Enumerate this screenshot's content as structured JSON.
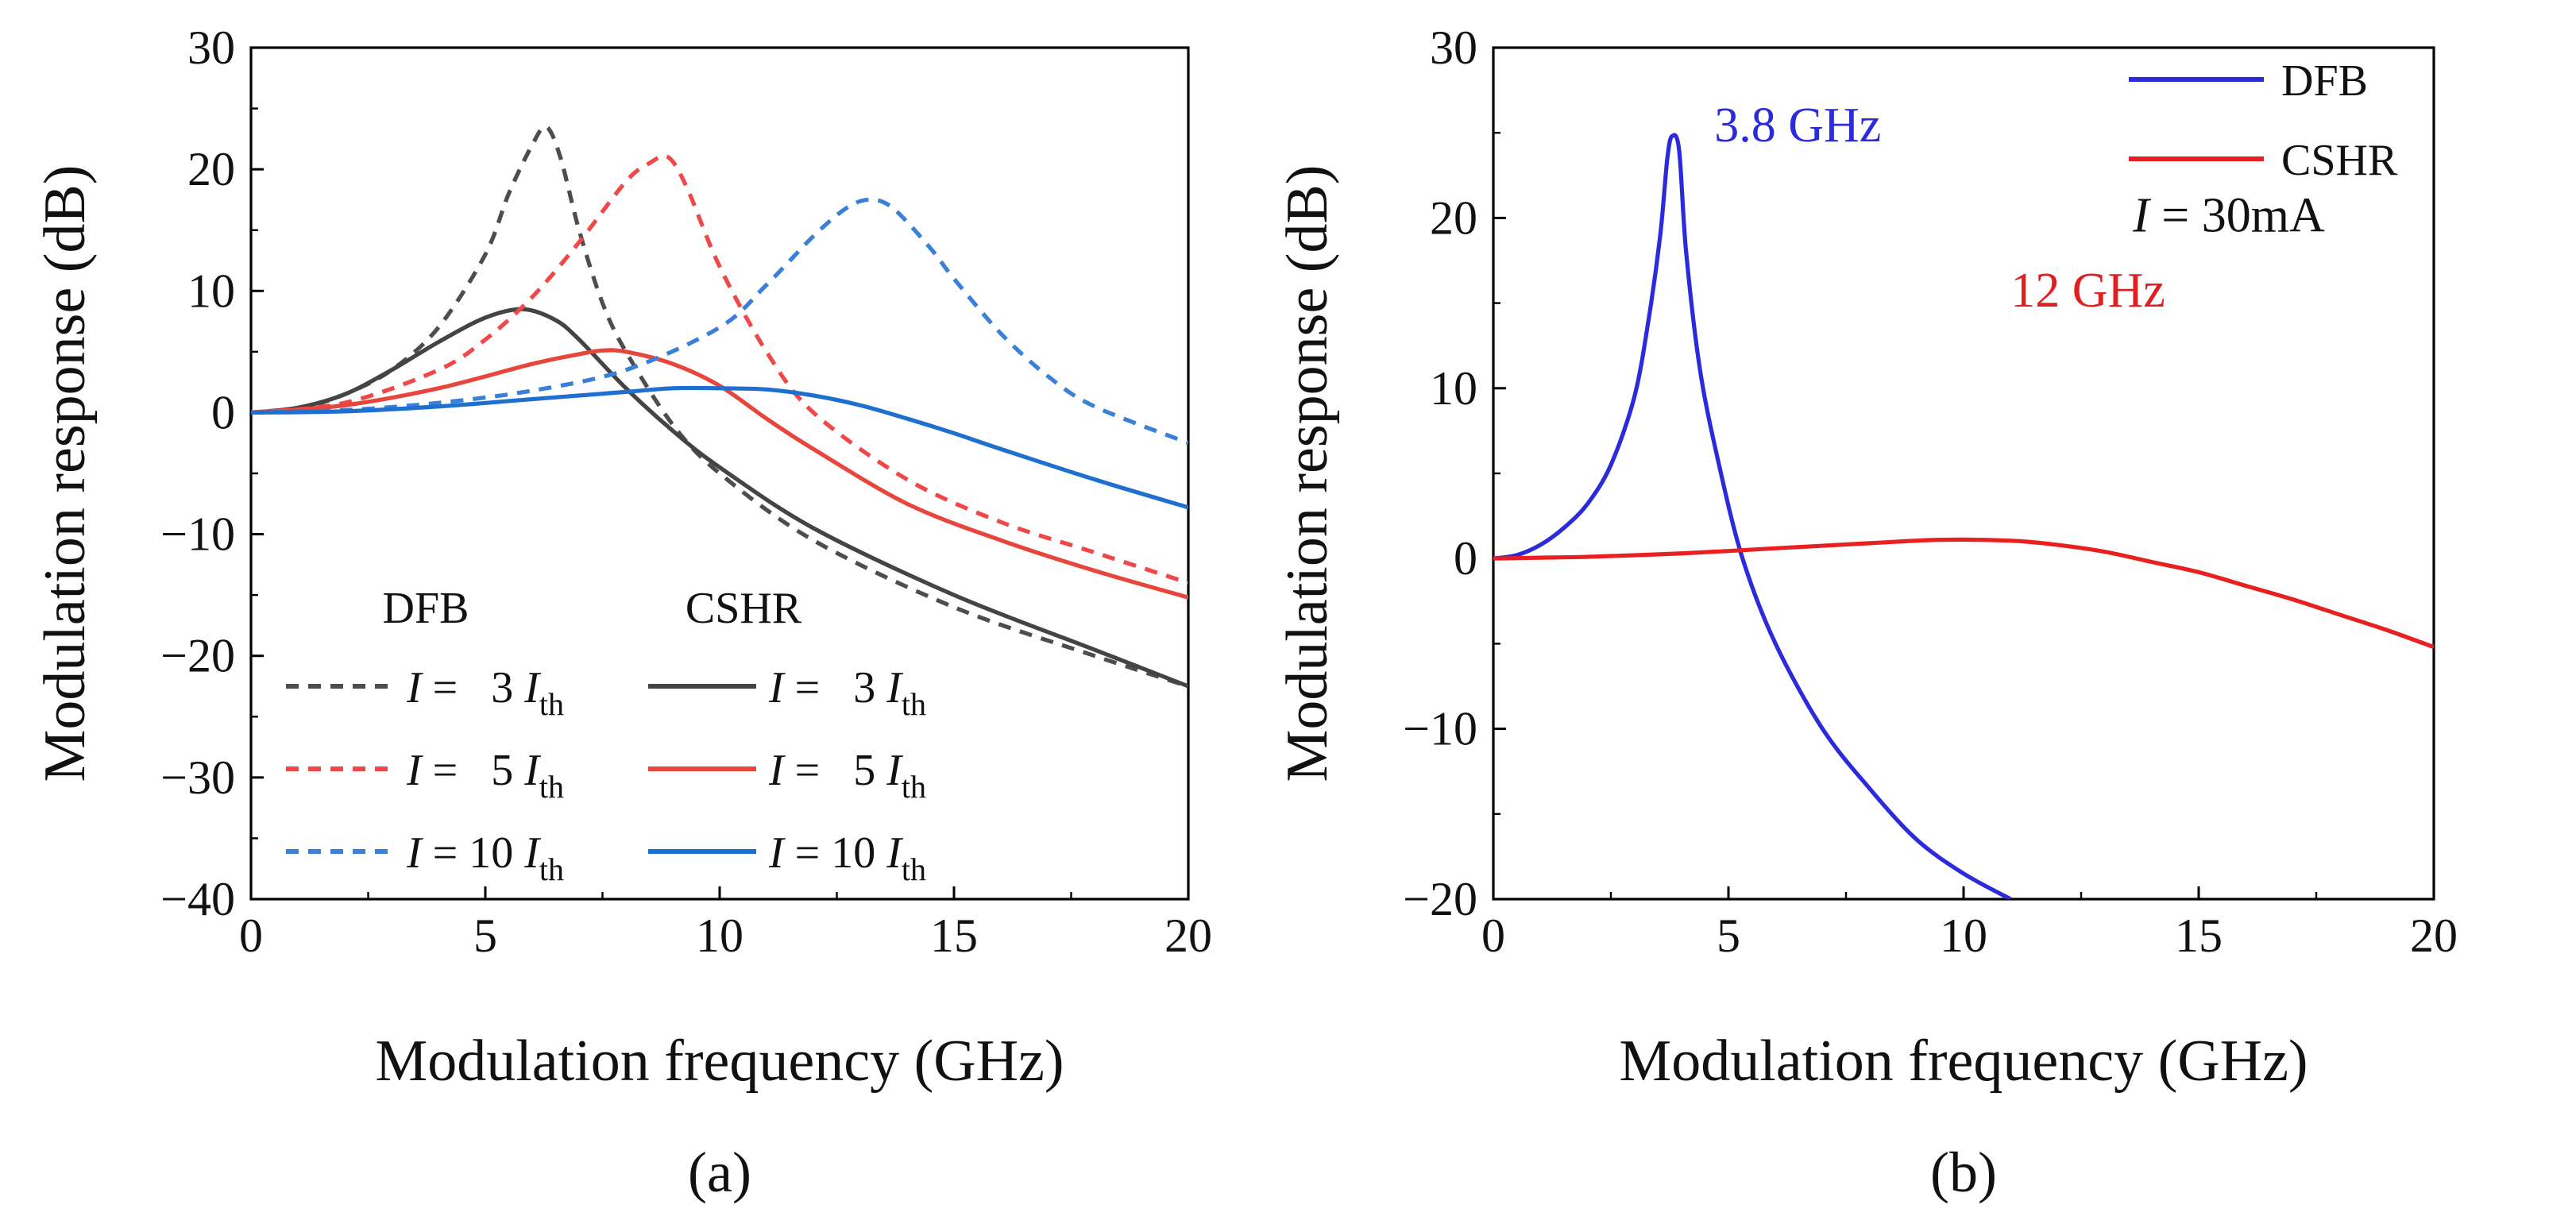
{
  "chart_data": [
    {
      "type": "line",
      "panel": "a",
      "caption": "(a)",
      "xlabel": "Modulation frequency (GHz)",
      "ylabel": "Modulation response (dB)",
      "xlim": [
        0,
        20
      ],
      "ylim": [
        -40,
        30
      ],
      "xticks": [
        0,
        5,
        10,
        15,
        20
      ],
      "yticks": [
        -40,
        -30,
        -20,
        -10,
        0,
        10,
        20,
        30
      ],
      "ytick_labels": [
        "−40",
        "−30",
        "−20",
        "−10",
        "0",
        "10",
        "20",
        "30"
      ],
      "grid": false,
      "legend": {
        "placement": "bottom-left",
        "group_headers": [
          "DFB",
          "CSHR"
        ],
        "entries": [
          {
            "series": "DFB 3Ith",
            "prefix": "I = ",
            "num": "3",
            "var": "I",
            "sub": "th"
          },
          {
            "series": "CSHR 3Ith",
            "prefix": "I = ",
            "num": "3",
            "var": "I",
            "sub": "th"
          },
          {
            "series": "DFB 5Ith",
            "prefix": "I = ",
            "num": "5",
            "var": "I",
            "sub": "th"
          },
          {
            "series": "CSHR 5Ith",
            "prefix": "I = ",
            "num": "5",
            "var": "I",
            "sub": "th"
          },
          {
            "series": "DFB 10Ith",
            "prefix": "I = ",
            "num": "10",
            "var": "I",
            "sub": "th"
          },
          {
            "series": "CSHR 10Ith",
            "prefix": "I = ",
            "num": "10",
            "var": "I",
            "sub": "th"
          }
        ]
      },
      "series": [
        {
          "name": "DFB 3Ith",
          "group": "DFB",
          "color": "#4d4d4d",
          "dash": "dashed",
          "x": [
            0,
            1,
            2,
            3,
            4,
            5,
            5.5,
            6,
            6.3,
            6.6,
            7,
            7.5,
            8,
            9,
            10,
            12,
            15,
            18,
            20
          ],
          "y": [
            0,
            0.3,
            1.5,
            3.5,
            7,
            13,
            18,
            22,
            23.5,
            21,
            15,
            9,
            5,
            -1,
            -5,
            -10.5,
            -16,
            -20,
            -22.5
          ]
        },
        {
          "name": "CSHR 3Ith",
          "group": "CSHR",
          "color": "#444444",
          "dash": "solid",
          "x": [
            0,
            1,
            2,
            3,
            4,
            5,
            5.8,
            6.5,
            7,
            8,
            9,
            10,
            12,
            15,
            18,
            20
          ],
          "y": [
            0,
            0.4,
            1.5,
            3.5,
            5.8,
            7.8,
            8.5,
            7.6,
            6,
            2,
            -1.5,
            -4.5,
            -9.5,
            -15,
            -19.5,
            -22.5
          ]
        },
        {
          "name": "DFB 5Ith",
          "group": "DFB",
          "color": "#f04848",
          "dash": "dashed",
          "x": [
            0,
            2,
            4,
            5,
            6,
            7,
            8,
            8.5,
            8.9,
            9.3,
            10,
            11,
            12,
            14,
            16,
            18,
            20
          ],
          "y": [
            0,
            0.8,
            3.5,
            6,
            9.5,
            14,
            19,
            20.5,
            21,
            18.5,
            12,
            5,
            0,
            -5.5,
            -9,
            -11.5,
            -14
          ]
        },
        {
          "name": "CSHR 5Ith",
          "group": "CSHR",
          "color": "#e8463c",
          "dash": "solid",
          "x": [
            0,
            2,
            4,
            6,
            7,
            7.5,
            8,
            9,
            10,
            11,
            12,
            14,
            16,
            18,
            20
          ],
          "y": [
            0,
            0.6,
            2,
            4,
            4.8,
            5.1,
            5,
            4,
            2.2,
            -0.5,
            -3,
            -7.5,
            -10.5,
            -13,
            -15.2
          ]
        },
        {
          "name": "DFB 10Ith",
          "group": "DFB",
          "color": "#3a7fd8",
          "dash": "dashed",
          "x": [
            0,
            2,
            4,
            6,
            8,
            10,
            11,
            12,
            12.7,
            13.2,
            13.7,
            14.5,
            15,
            16,
            17,
            18,
            20
          ],
          "y": [
            0,
            0.2,
            0.8,
            1.8,
            3.5,
            7,
            10.5,
            14.5,
            16.8,
            17.5,
            16.8,
            13.5,
            11,
            6.5,
            3,
            0.5,
            -2.5
          ]
        },
        {
          "name": "CSHR 10Ith",
          "group": "CSHR",
          "color": "#1d6fd0",
          "dash": "solid",
          "x": [
            0,
            2,
            4,
            6,
            8,
            9,
            10,
            11,
            12,
            13,
            14,
            15,
            16,
            18,
            20
          ],
          "y": [
            0,
            0.1,
            0.5,
            1.1,
            1.7,
            2,
            2,
            1.9,
            1.4,
            0.6,
            -0.5,
            -1.7,
            -3,
            -5.5,
            -7.8
          ]
        }
      ]
    },
    {
      "type": "line",
      "panel": "b",
      "caption": "(b)",
      "xlabel": "Modulation frequency (GHz)",
      "ylabel": "Modulation response (dB)",
      "xlim": [
        0,
        20
      ],
      "ylim": [
        -20,
        30
      ],
      "xticks": [
        0,
        5,
        10,
        15,
        20
      ],
      "yticks": [
        -20,
        -10,
        0,
        10,
        20,
        30
      ],
      "ytick_labels": [
        "−20",
        "−10",
        "0",
        "10",
        "20",
        "30"
      ],
      "grid": false,
      "legend": {
        "placement": "top-right",
        "entries": [
          {
            "series": "DFB",
            "label": "DFB"
          },
          {
            "series": "CSHR",
            "label": "CSHR"
          }
        ]
      },
      "annotations": [
        {
          "text": "3.8 GHz",
          "x": 4.7,
          "y": 24.5,
          "color": "#2b2bdc"
        },
        {
          "text": "12 GHz",
          "x": 11,
          "y": 14.8,
          "color": "#e02020"
        },
        {
          "var": "I",
          "text": " = 30mA",
          "x": 13.6,
          "y": 19.2,
          "color": "#111111"
        }
      ],
      "series": [
        {
          "name": "DFB",
          "color": "#2b2bdc",
          "dash": "solid",
          "x": [
            0,
            0.5,
            1,
            1.5,
            2,
            2.5,
            3,
            3.3,
            3.55,
            3.7,
            3.8,
            3.95,
            4.1,
            4.4,
            4.8,
            5.3,
            6,
            7,
            8,
            9,
            10,
            11
          ],
          "y": [
            0,
            0.2,
            0.8,
            1.8,
            3.2,
            5.5,
            9.5,
            14,
            19,
            23.5,
            24.8,
            24,
            18,
            11,
            5.5,
            0,
            -5,
            -10,
            -13.5,
            -16.5,
            -18.5,
            -20
          ]
        },
        {
          "name": "CSHR",
          "color": "#e82020",
          "dash": "solid",
          "x": [
            0,
            1,
            2,
            4,
            6,
            8,
            9.5,
            11,
            12,
            13,
            14,
            15,
            16,
            17,
            18,
            19,
            20
          ],
          "y": [
            0,
            0.05,
            0.1,
            0.3,
            0.6,
            0.9,
            1.1,
            1.05,
            0.8,
            0.4,
            -0.2,
            -0.8,
            -1.6,
            -2.4,
            -3.3,
            -4.2,
            -5.2
          ]
        }
      ]
    }
  ]
}
